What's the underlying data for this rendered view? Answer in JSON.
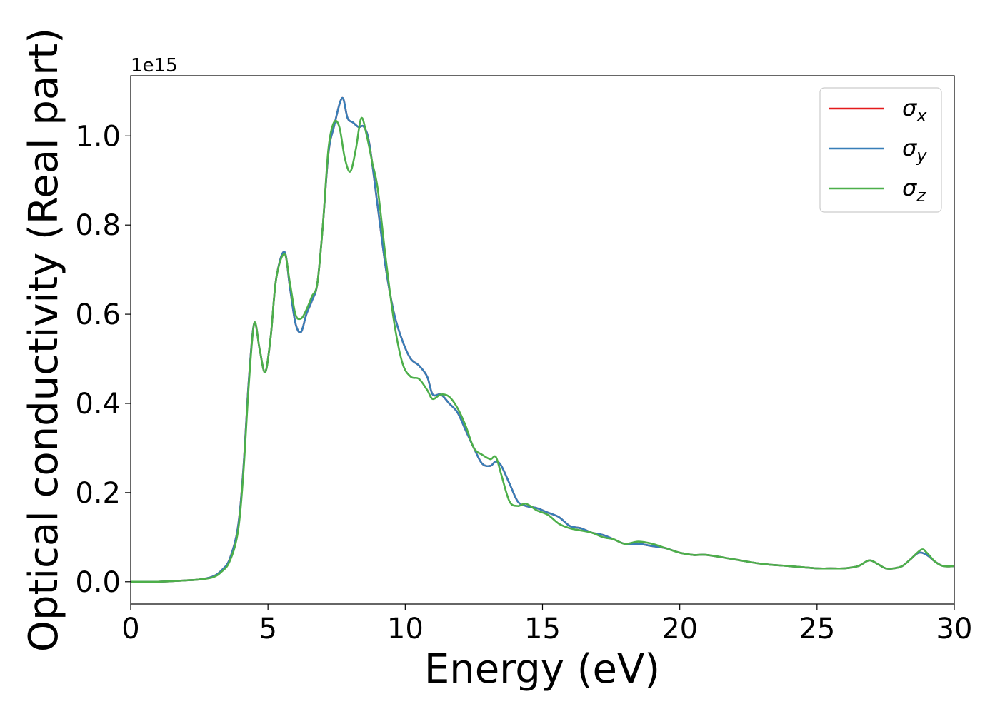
{
  "chart_data": {
    "type": "line",
    "title": "",
    "xlabel": "Energy (eV)",
    "ylabel": "Optical conductivity (Real part)",
    "y_offset_label": "1e15",
    "y_scale": 1000000000000000.0,
    "xlim": [
      0,
      30
    ],
    "ylim": [
      -0.05,
      1.135
    ],
    "xticks": [
      0,
      5,
      10,
      15,
      20,
      25,
      30
    ],
    "xtick_labels": [
      "0",
      "5",
      "10",
      "15",
      "20",
      "25",
      "30"
    ],
    "yticks": [
      0.0,
      0.2,
      0.4,
      0.6,
      0.8,
      1.0
    ],
    "ytick_labels": [
      "0.0",
      "0.2",
      "0.4",
      "0.6",
      "0.8",
      "1.0"
    ],
    "grid": false,
    "legend_position": "top-right",
    "series": [
      {
        "name": "σx",
        "base": "σ",
        "sub": "x",
        "color": "#e41a1c",
        "x": [
          0,
          1,
          2,
          2.5,
          3,
          3.3,
          3.6,
          3.9,
          4.1,
          4.3,
          4.5,
          4.7,
          4.9,
          5.1,
          5.3,
          5.6,
          5.8,
          6,
          6.2,
          6.4,
          6.6,
          6.8,
          7,
          7.2,
          7.4,
          7.7,
          7.9,
          8.1,
          8.3,
          8.5,
          8.7,
          9,
          9.3,
          9.6,
          9.9,
          10.2,
          10.5,
          10.8,
          11,
          11.3,
          11.6,
          11.9,
          12.2,
          12.5,
          12.8,
          13.1,
          13.3,
          13.5,
          13.8,
          14.1,
          14.4,
          14.8,
          15.2,
          15.6,
          16,
          16.4,
          16.8,
          17.2,
          17.6,
          18,
          18.5,
          19,
          19.5,
          20,
          20.5,
          21,
          22,
          23,
          24,
          25,
          25.5,
          26,
          26.5,
          26.9,
          27.2,
          27.5,
          27.8,
          28.1,
          28.4,
          28.7,
          29,
          29.3,
          29.6,
          30
        ],
        "y": [
          0,
          0,
          0.003,
          0.005,
          0.012,
          0.025,
          0.05,
          0.12,
          0.25,
          0.45,
          0.58,
          0.52,
          0.47,
          0.55,
          0.68,
          0.74,
          0.66,
          0.58,
          0.56,
          0.6,
          0.63,
          0.67,
          0.8,
          0.96,
          1.02,
          1.085,
          1.04,
          1.03,
          1.02,
          1.02,
          0.98,
          0.84,
          0.7,
          0.6,
          0.54,
          0.5,
          0.485,
          0.46,
          0.42,
          0.42,
          0.4,
          0.38,
          0.34,
          0.3,
          0.265,
          0.26,
          0.27,
          0.26,
          0.22,
          0.18,
          0.17,
          0.165,
          0.155,
          0.145,
          0.125,
          0.12,
          0.11,
          0.105,
          0.095,
          0.085,
          0.085,
          0.08,
          0.075,
          0.065,
          0.06,
          0.06,
          0.05,
          0.04,
          0.035,
          0.03,
          0.03,
          0.03,
          0.035,
          0.048,
          0.04,
          0.03,
          0.03,
          0.035,
          0.05,
          0.065,
          0.06,
          0.045,
          0.035,
          0.035
        ]
      },
      {
        "name": "σy",
        "base": "σ",
        "sub": "y",
        "color": "#377eb8",
        "x": [
          0,
          1,
          2,
          2.5,
          3,
          3.3,
          3.6,
          3.9,
          4.1,
          4.3,
          4.5,
          4.7,
          4.9,
          5.1,
          5.3,
          5.6,
          5.8,
          6,
          6.2,
          6.4,
          6.6,
          6.8,
          7,
          7.2,
          7.4,
          7.7,
          7.9,
          8.1,
          8.3,
          8.5,
          8.7,
          9,
          9.3,
          9.6,
          9.9,
          10.2,
          10.5,
          10.8,
          11,
          11.3,
          11.6,
          11.9,
          12.2,
          12.5,
          12.8,
          13.1,
          13.3,
          13.5,
          13.8,
          14.1,
          14.4,
          14.8,
          15.2,
          15.6,
          16,
          16.4,
          16.8,
          17.2,
          17.6,
          18,
          18.5,
          19,
          19.5,
          20,
          20.5,
          21,
          22,
          23,
          24,
          25,
          25.5,
          26,
          26.5,
          26.9,
          27.2,
          27.5,
          27.8,
          28.1,
          28.4,
          28.7,
          29,
          29.3,
          29.6,
          30
        ],
        "y": [
          0,
          0,
          0.003,
          0.005,
          0.012,
          0.025,
          0.05,
          0.12,
          0.25,
          0.45,
          0.58,
          0.52,
          0.47,
          0.55,
          0.68,
          0.74,
          0.66,
          0.58,
          0.56,
          0.6,
          0.63,
          0.67,
          0.8,
          0.96,
          1.02,
          1.085,
          1.04,
          1.03,
          1.02,
          1.02,
          0.98,
          0.84,
          0.7,
          0.6,
          0.54,
          0.5,
          0.485,
          0.46,
          0.42,
          0.42,
          0.4,
          0.38,
          0.34,
          0.3,
          0.265,
          0.26,
          0.27,
          0.26,
          0.22,
          0.18,
          0.17,
          0.165,
          0.155,
          0.145,
          0.125,
          0.12,
          0.11,
          0.105,
          0.095,
          0.085,
          0.085,
          0.08,
          0.075,
          0.065,
          0.06,
          0.06,
          0.05,
          0.04,
          0.035,
          0.03,
          0.03,
          0.03,
          0.035,
          0.048,
          0.04,
          0.03,
          0.03,
          0.035,
          0.05,
          0.065,
          0.06,
          0.045,
          0.035,
          0.035
        ]
      },
      {
        "name": "σz",
        "base": "σ",
        "sub": "z",
        "color": "#4daf4a",
        "x": [
          0,
          1,
          2,
          2.5,
          3,
          3.3,
          3.6,
          3.9,
          4.1,
          4.3,
          4.5,
          4.7,
          4.9,
          5.1,
          5.3,
          5.6,
          5.8,
          6,
          6.2,
          6.4,
          6.6,
          6.8,
          7,
          7.2,
          7.4,
          7.6,
          7.8,
          8,
          8.2,
          8.4,
          8.6,
          8.8,
          9,
          9.3,
          9.6,
          9.9,
          10.2,
          10.5,
          10.8,
          11,
          11.3,
          11.6,
          11.9,
          12.2,
          12.5,
          12.8,
          13.1,
          13.3,
          13.5,
          13.8,
          14.1,
          14.4,
          14.8,
          15.2,
          15.6,
          16,
          16.4,
          16.8,
          17.2,
          17.6,
          18,
          18.5,
          19,
          19.5,
          20,
          20.5,
          21,
          22,
          23,
          24,
          25,
          25.5,
          26,
          26.5,
          26.9,
          27.2,
          27.5,
          27.8,
          28.1,
          28.4,
          28.8,
          29,
          29.3,
          29.6,
          30
        ],
        "y": [
          0,
          0,
          0.003,
          0.005,
          0.01,
          0.022,
          0.045,
          0.11,
          0.24,
          0.44,
          0.58,
          0.52,
          0.47,
          0.55,
          0.68,
          0.735,
          0.67,
          0.6,
          0.59,
          0.61,
          0.64,
          0.67,
          0.8,
          0.97,
          1.03,
          1.02,
          0.95,
          0.92,
          0.97,
          1.04,
          1.0,
          0.94,
          0.88,
          0.72,
          0.58,
          0.49,
          0.46,
          0.455,
          0.43,
          0.41,
          0.42,
          0.415,
          0.39,
          0.35,
          0.3,
          0.285,
          0.275,
          0.28,
          0.24,
          0.18,
          0.17,
          0.175,
          0.16,
          0.15,
          0.13,
          0.12,
          0.115,
          0.11,
          0.1,
          0.095,
          0.085,
          0.09,
          0.085,
          0.075,
          0.065,
          0.06,
          0.06,
          0.05,
          0.04,
          0.035,
          0.03,
          0.03,
          0.03,
          0.035,
          0.048,
          0.04,
          0.03,
          0.03,
          0.035,
          0.05,
          0.072,
          0.065,
          0.045,
          0.035,
          0.035
        ]
      }
    ]
  }
}
